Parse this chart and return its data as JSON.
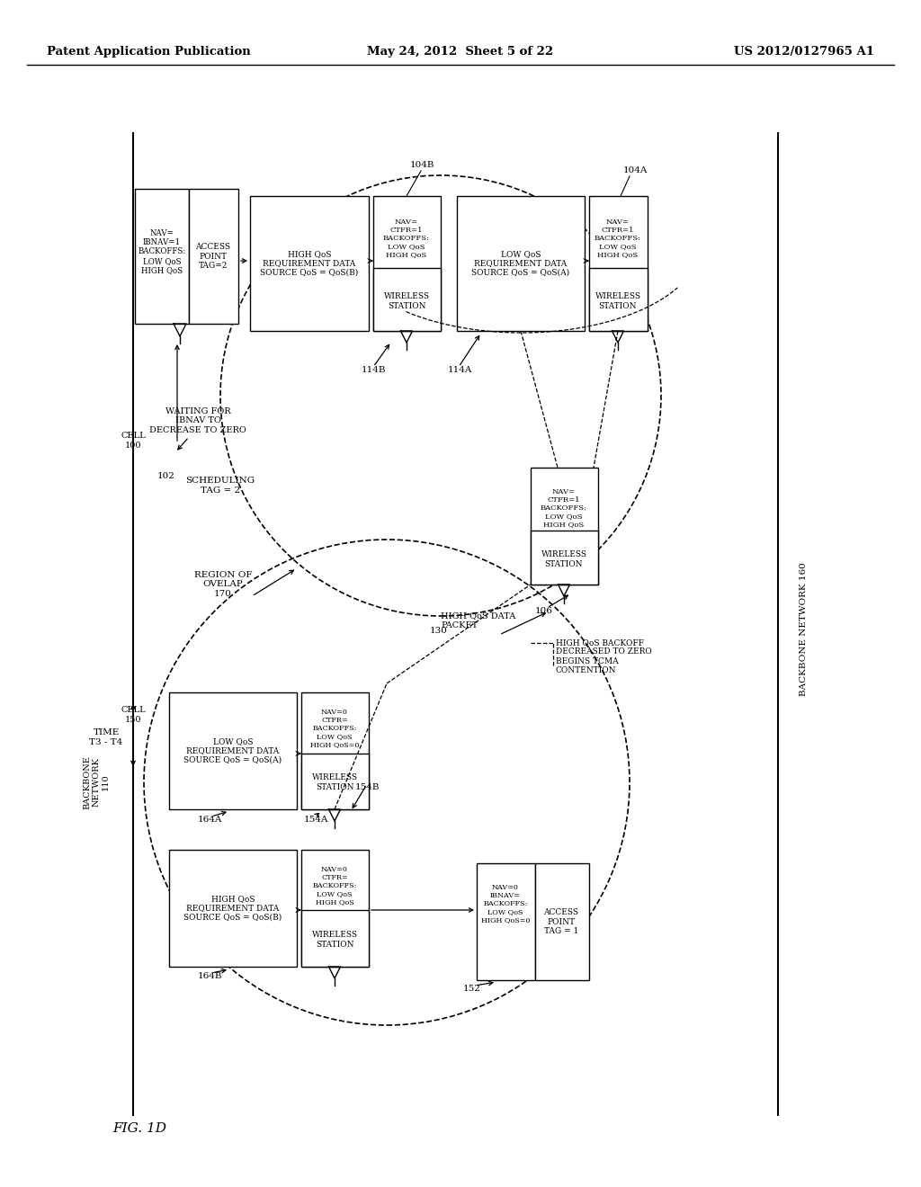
{
  "header_left": "Patent Application Publication",
  "header_center": "May 24, 2012  Sheet 5 of 22",
  "header_right": "US 2012/0127965 A1",
  "fig_label": "FIG. 1D",
  "background_color": "#ffffff"
}
